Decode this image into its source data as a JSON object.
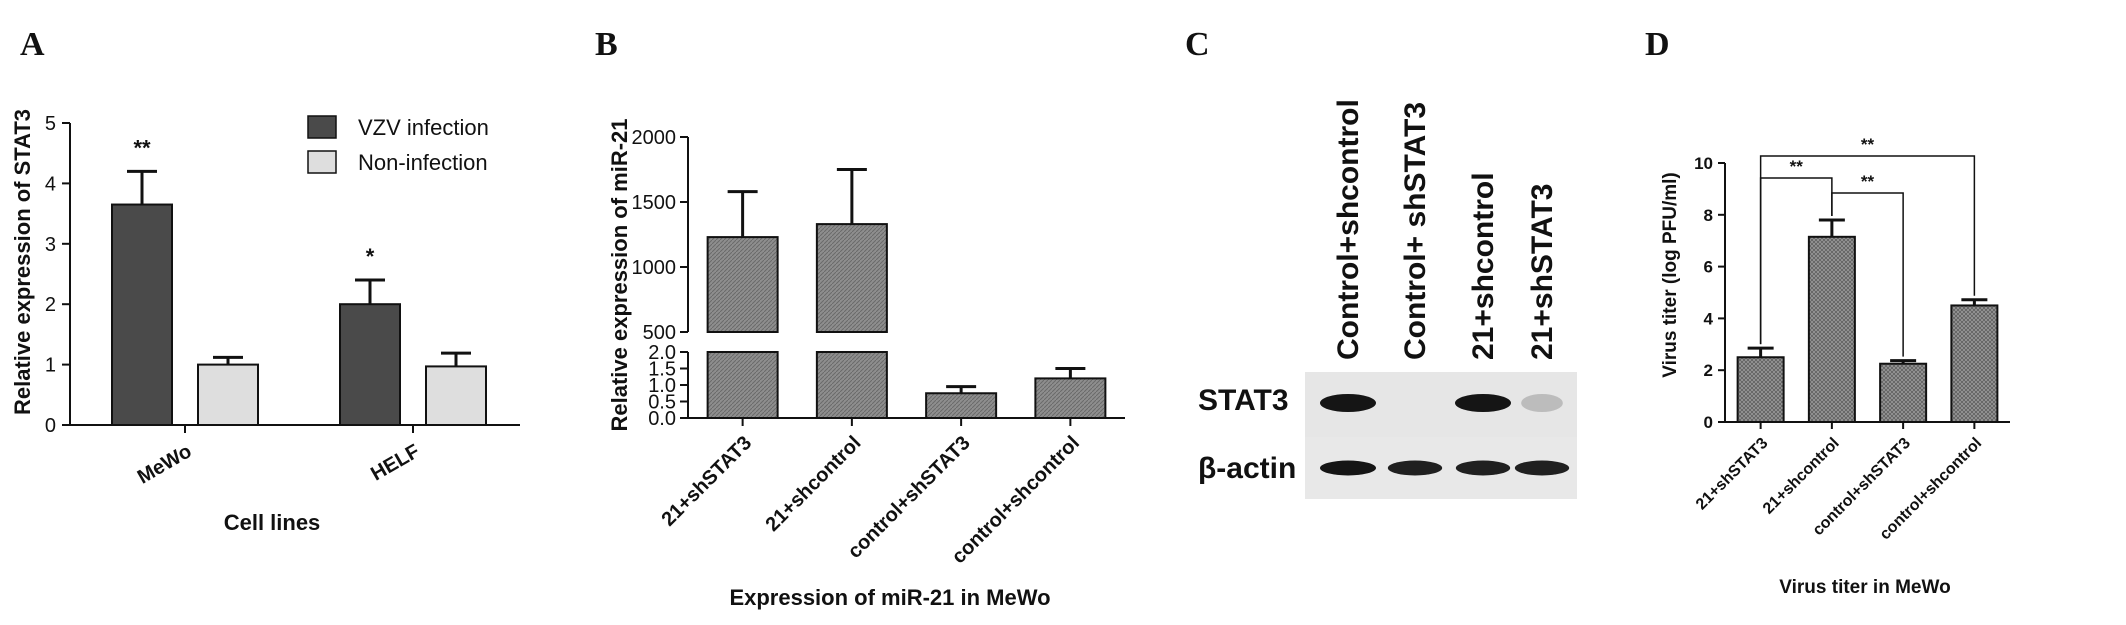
{
  "panels": {
    "A": "A",
    "B": "B",
    "C": "C",
    "D": "D"
  },
  "colors": {
    "dark_bar": "#4a4a4a",
    "light_bar": "#dedede",
    "hatch_bar": "#8a8a8a",
    "blot_bg": "#e6e6e6",
    "band": "#151515"
  },
  "chart_data": [
    {
      "id": "A",
      "type": "bar",
      "categories": [
        "MeWo",
        "HELF"
      ],
      "series": [
        {
          "name": "VZV infection",
          "values": [
            3.65,
            2.0
          ],
          "errors": [
            0.55,
            0.4
          ],
          "color": "#4a4a4a"
        },
        {
          "name": "Non-infection",
          "values": [
            1.0,
            0.97
          ],
          "errors": [
            0.12,
            0.22
          ],
          "color": "#dedede"
        }
      ],
      "annotations": [
        "**",
        "*"
      ],
      "xlabel": "Cell lines",
      "ylabel": "Relative expression of STAT3",
      "ylim": [
        0,
        5
      ],
      "yticks": [
        "0",
        "1",
        "2",
        "3",
        "4",
        "5"
      ],
      "legend": "top-right"
    },
    {
      "id": "B",
      "type": "bar",
      "categories": [
        "21+shSTAT3",
        "21+shcontrol",
        "control+shSTAT3",
        "control+shcontrol"
      ],
      "values": [
        1230,
        1330,
        0.75,
        1.2
      ],
      "errors": [
        350,
        420,
        0.2,
        0.3
      ],
      "xlabel": "Expression of miR-21 in MeWo",
      "ylabel": "Relative expression of miR-21",
      "broken_axis": true,
      "ylim_lower": [
        0,
        2.0
      ],
      "ylim_upper": [
        500,
        2000
      ],
      "yticks_lower": [
        "0.0",
        "0.5",
        "1.0",
        "1.5",
        "2.0"
      ],
      "yticks_upper": [
        "500",
        "1000",
        "1500",
        "2000"
      ]
    },
    {
      "id": "D",
      "type": "bar",
      "categories": [
        "21+shSTAT3",
        "21+shcontrol",
        "control+shSTAT3",
        "control+shcontrol"
      ],
      "values": [
        2.5,
        7.15,
        2.25,
        4.5
      ],
      "errors": [
        0.35,
        0.65,
        0.12,
        0.22
      ],
      "xlabel": "Virus titer in MeWo",
      "ylabel": "Virus titer (log PFU/ml)",
      "ylim": [
        0,
        10
      ],
      "yticks": [
        "0",
        "2",
        "4",
        "6",
        "8",
        "10"
      ],
      "significance": [
        {
          "from": 0,
          "to": 1,
          "label": "**"
        },
        {
          "from": 1,
          "to": 2,
          "label": "**"
        },
        {
          "from": 0,
          "to": 3,
          "label": "**"
        }
      ]
    }
  ],
  "blot": {
    "columns": [
      "Control+shcontrol",
      "Control+ shSTAT3",
      "21+shcontrol",
      "21+shSTAT3"
    ],
    "rows": [
      {
        "label": "STAT3",
        "bands": [
          1,
          0,
          1,
          0.15
        ]
      },
      {
        "label": "β-actin",
        "bands": [
          1,
          0.9,
          0.9,
          0.9
        ]
      }
    ]
  }
}
